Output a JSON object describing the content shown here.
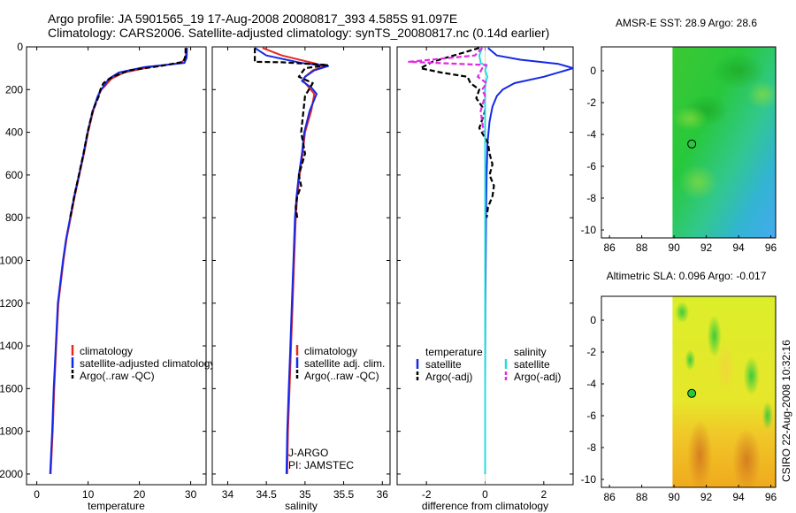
{
  "header": {
    "title_line1": "Argo profile: JA 5901565_19 17-Aug-2008 20080817_393 4.585S 91.097E",
    "title_line2": "Climatology: CARS2006. Satellite-adjusted climatology: synTS_20080817.nc (0.14d earlier)"
  },
  "footer": {
    "credit": "CSIRO 22-Aug-2008 10:32:16"
  },
  "colors": {
    "climatology": "#e8281e",
    "satellite": "#1428e6",
    "argo": "#000000",
    "satellite_diff_salinity": "#28dcdc",
    "argo_diff_salinity": "#e628e6"
  },
  "chart_data": [
    {
      "id": "temperature",
      "type": "line",
      "title": "",
      "xlabel": "temperature",
      "ylabel": "",
      "xlim": [
        -2,
        33
      ],
      "ylim": [
        2050,
        0
      ],
      "xticks": [
        0,
        10,
        20,
        30
      ],
      "yticks": [
        0,
        200,
        400,
        600,
        800,
        1000,
        1200,
        1400,
        1600,
        1800,
        2000
      ],
      "legend": {
        "position": "lower-center",
        "entries": [
          "climatology",
          "satellite-adjusted climatology",
          "Argo(..raw -QC)"
        ]
      },
      "series": [
        {
          "name": "climatology",
          "style": "solid",
          "color": "#e8281e",
          "x": [
            29.2,
            29.0,
            28.2,
            22,
            17,
            14.5,
            13.4,
            12.6,
            12,
            11,
            10,
            9.2,
            8.3,
            7.4,
            6.6,
            5.8,
            5.2,
            4.7,
            4.2,
            3.8,
            3.4,
            3.1,
            2.7
          ],
          "y": [
            5,
            50,
            75,
            95,
            120,
            150,
            180,
            200,
            230,
            300,
            400,
            500,
            600,
            700,
            800,
            900,
            1000,
            1100,
            1200,
            1400,
            1600,
            1800,
            2000
          ]
        },
        {
          "name": "satellite-adjusted climatology",
          "style": "solid",
          "color": "#1428e6",
          "x": [
            29.3,
            29.2,
            28.8,
            21,
            16,
            14,
            13.2,
            12.5,
            11.9,
            10.9,
            9.9,
            9.1,
            8.2,
            7.3,
            6.5,
            5.7,
            5.1,
            4.6,
            4.1,
            3.7,
            3.3,
            3.0,
            2.6
          ],
          "y": [
            5,
            50,
            75,
            95,
            120,
            150,
            180,
            200,
            230,
            300,
            400,
            500,
            600,
            700,
            800,
            900,
            1000,
            1100,
            1200,
            1400,
            1600,
            1800,
            2000
          ]
        },
        {
          "name": "Argo(..raw -QC)",
          "style": "dashed",
          "color": "#000000",
          "x": [
            29.0,
            29.0,
            28.6,
            24,
            18,
            14.8,
            13.0,
            12.4,
            12.1,
            10.9,
            9.9,
            9.1,
            8.2,
            7.3,
            6.5
          ],
          "y": [
            5,
            40,
            70,
            90,
            110,
            140,
            170,
            200,
            230,
            300,
            400,
            500,
            600,
            700,
            800
          ]
        }
      ]
    },
    {
      "id": "salinity",
      "type": "line",
      "title": "",
      "xlabel": "salinity",
      "ylabel": "",
      "xlim": [
        33.8,
        36.1
      ],
      "ylim": [
        2050,
        0
      ],
      "xticks": [
        34,
        34.5,
        35,
        35.5,
        36
      ],
      "yticks": [
        0,
        200,
        400,
        600,
        800,
        1000,
        1200,
        1400,
        1600,
        1800,
        2000
      ],
      "legend": {
        "position": "lower-right",
        "entries": [
          "climatology",
          "satellite adj. clim.",
          "Argo(..raw -QC)"
        ]
      },
      "annotations": [
        "J-ARGO",
        "PI: JAMSTEC"
      ],
      "series": [
        {
          "name": "climatology",
          "style": "solid",
          "color": "#e8281e",
          "x": [
            34.45,
            34.7,
            35.1,
            35.25,
            35.1,
            35.0,
            34.98,
            35.05,
            35.12,
            35.08,
            35.0,
            34.97,
            34.93,
            34.9,
            34.88,
            34.86,
            34.84,
            34.82,
            34.8,
            34.78,
            34.77
          ],
          "y": [
            5,
            40,
            75,
            90,
            110,
            140,
            160,
            190,
            220,
            300,
            400,
            500,
            600,
            700,
            800,
            1000,
            1200,
            1400,
            1600,
            1800,
            2000
          ]
        },
        {
          "name": "satellite adj. clim.",
          "style": "solid",
          "color": "#1428e6",
          "x": [
            34.35,
            34.5,
            34.95,
            35.3,
            35.12,
            35.0,
            34.96,
            35.08,
            35.15,
            35.06,
            34.99,
            34.96,
            34.92,
            34.89,
            34.87,
            34.85,
            34.83,
            34.81,
            34.79,
            34.77,
            34.76
          ],
          "y": [
            5,
            40,
            75,
            90,
            110,
            140,
            160,
            190,
            220,
            300,
            400,
            500,
            600,
            700,
            800,
            1000,
            1200,
            1400,
            1600,
            1800,
            2000
          ]
        },
        {
          "name": "Argo(..raw -QC)",
          "style": "dashed",
          "color": "#000000",
          "x": [
            34.35,
            34.35,
            34.7,
            35.3,
            35.0,
            34.92,
            35.1,
            35.05,
            35.0,
            34.98,
            34.95,
            35.0,
            34.92,
            34.95,
            34.9,
            34.88,
            34.9
          ],
          "y": [
            5,
            70,
            72,
            85,
            100,
            140,
            170,
            200,
            230,
            300,
            400,
            500,
            600,
            650,
            700,
            750,
            800
          ]
        }
      ]
    },
    {
      "id": "difference",
      "type": "line",
      "title": "",
      "xlabel": "difference from climatology",
      "ylabel": "",
      "xlim": [
        -3,
        3
      ],
      "ylim": [
        2050,
        0
      ],
      "xticks": [
        -2,
        0,
        2
      ],
      "yticks": [
        0,
        200,
        400,
        600,
        800,
        1000,
        1200,
        1400,
        1600,
        1800,
        2000
      ],
      "legend": {
        "position": "lower-center",
        "headers": [
          "temperature",
          "salinity"
        ],
        "entries": [
          "satellite",
          "Argo(-adj)",
          "satellite",
          "Argo(-adj)"
        ]
      },
      "series": [
        {
          "name": "temperature satellite",
          "style": "solid",
          "color": "#1428e6",
          "x": [
            0.1,
            0.4,
            1.2,
            2.5,
            3.0,
            2.0,
            1.0,
            0.6,
            0.4,
            0.25,
            0.15,
            0.08,
            0.05,
            0.03,
            0.01,
            0.0,
            0.0
          ],
          "y": [
            5,
            40,
            60,
            80,
            100,
            140,
            170,
            200,
            230,
            280,
            350,
            450,
            600,
            800,
            1200,
            1600,
            2000
          ]
        },
        {
          "name": "temperature Argo(-adj)",
          "style": "dashed",
          "color": "#000000",
          "x": [
            -0.2,
            -1.8,
            -2.2,
            -1.5,
            -0.6,
            -0.5,
            -0.2,
            -0.3,
            0.0,
            -0.2,
            0.1,
            0.15,
            0.25,
            0.15,
            0.3,
            0.25,
            0.1,
            0.05
          ],
          "y": [
            5,
            70,
            100,
            120,
            140,
            170,
            200,
            240,
            300,
            380,
            450,
            500,
            550,
            600,
            650,
            700,
            750,
            800
          ]
        },
        {
          "name": "salinity satellite",
          "style": "solid",
          "color": "#28dcdc",
          "x": [
            -0.1,
            -0.2,
            -0.15,
            0.05,
            0.0,
            0.08,
            0.03,
            0.0,
            0.0,
            0.0,
            0.0
          ],
          "y": [
            5,
            40,
            75,
            90,
            110,
            140,
            160,
            190,
            300,
            1000,
            2000
          ]
        },
        {
          "name": "salinity Argo(-adj)",
          "style": "dashed",
          "color": "#e628e6",
          "x": [
            -0.1,
            -0.35,
            -2.6,
            0.05,
            -0.1,
            -0.25,
            0.05,
            -0.1,
            0.0,
            -0.15,
            -0.05
          ],
          "y": [
            5,
            40,
            70,
            85,
            100,
            140,
            170,
            200,
            230,
            300,
            400
          ]
        }
      ]
    },
    {
      "id": "sst_map",
      "type": "heatmap",
      "title": "AMSR-E SST: 28.9 Argo: 28.6",
      "xlabel": "",
      "ylabel": "",
      "xlim": [
        85.5,
        96.3
      ],
      "ylim": [
        -10.5,
        1.5
      ],
      "xticks": [
        86,
        88,
        90,
        92,
        94,
        96
      ],
      "yticks": [
        0,
        -2,
        -4,
        -6,
        -8,
        -10
      ],
      "data_extent_lon": [
        89.9,
        96.3
      ],
      "marker": {
        "lon": 91.1,
        "lat": -4.6,
        "style": "open-circle"
      }
    },
    {
      "id": "sla_map",
      "type": "heatmap",
      "title": "Altimetric SLA: 0.096 Argo: -0.017",
      "xlabel": "",
      "ylabel": "",
      "xlim": [
        85.5,
        96.3
      ],
      "ylim": [
        -10.5,
        1.5
      ],
      "xticks": [
        86,
        88,
        90,
        92,
        94,
        96
      ],
      "yticks": [
        0,
        -2,
        -4,
        -6,
        -8,
        -10
      ],
      "data_extent_lon": [
        89.9,
        96.3
      ],
      "marker": {
        "lon": 91.1,
        "lat": -4.6,
        "style": "filled-circle"
      }
    }
  ]
}
